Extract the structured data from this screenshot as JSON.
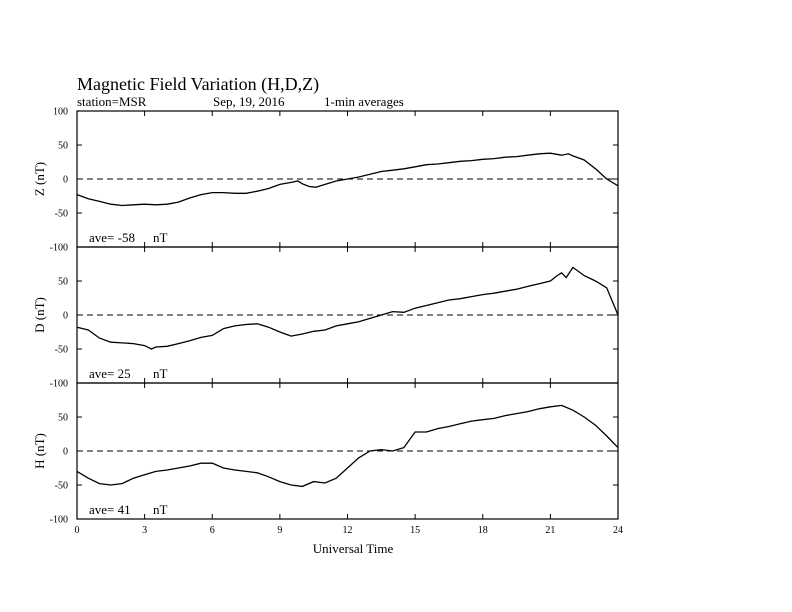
{
  "chart_data": {
    "type": "line",
    "title": "Magnetic Field Variation (H,D,Z)",
    "station": "station=MSR",
    "date": "Sep, 19, 2016",
    "averaging": "1-min averages",
    "xlabel": "Universal Time",
    "xlim": [
      0,
      24
    ],
    "xticks": [
      0,
      3,
      6,
      9,
      12,
      15,
      18,
      21,
      24
    ],
    "grid": false,
    "panels": [
      {
        "name": "Z",
        "ylabel": "Z (nT)",
        "ylim": [
          -100,
          100
        ],
        "yticks": [
          -100,
          -50,
          0,
          50,
          100
        ],
        "ave_label": "ave=",
        "ave_value": "-58",
        "ave_unit": "nT",
        "x": [
          0,
          0.5,
          1,
          1.5,
          2,
          2.5,
          3,
          3.5,
          4,
          4.5,
          5,
          5.5,
          6,
          6.5,
          7,
          7.5,
          8,
          8.5,
          9,
          9.5,
          9.8,
          10,
          10.3,
          10.6,
          11,
          11.5,
          12,
          12.5,
          13,
          13.5,
          14,
          14.5,
          15,
          15.5,
          16,
          16.5,
          17,
          17.5,
          18,
          18.5,
          19,
          19.5,
          20,
          20.5,
          21,
          21.5,
          21.8,
          22,
          22.5,
          23,
          23.5,
          24
        ],
        "y": [
          -23,
          -29,
          -33,
          -37,
          -39,
          -38,
          -37,
          -38,
          -37,
          -34,
          -28,
          -23,
          -20,
          -20,
          -21,
          -21,
          -18,
          -14,
          -8,
          -5,
          -3,
          -7,
          -11,
          -12,
          -8,
          -3,
          0,
          3,
          7,
          11,
          13,
          15,
          18,
          21,
          22,
          24,
          26,
          27,
          29,
          30,
          32,
          33,
          35,
          37,
          38,
          35,
          37,
          34,
          28,
          15,
          0,
          -10
        ]
      },
      {
        "name": "D",
        "ylabel": "D (nT)",
        "ylim": [
          -100,
          100
        ],
        "yticks": [
          -100,
          -50,
          0,
          50,
          100
        ],
        "ave_label": "ave=",
        "ave_value": "25",
        "ave_unit": "nT",
        "x": [
          0,
          0.5,
          1,
          1.5,
          2,
          2.5,
          3,
          3.3,
          3.5,
          4,
          4.5,
          5,
          5.5,
          6,
          6.5,
          7,
          7.5,
          8,
          8.5,
          9,
          9.5,
          10,
          10.5,
          11,
          11.5,
          12,
          12.5,
          13,
          13.5,
          14,
          14.5,
          15,
          15.5,
          16,
          16.5,
          17,
          17.5,
          18,
          18.5,
          19,
          19.5,
          20,
          20.5,
          21,
          21.3,
          21.5,
          21.7,
          22,
          22.5,
          23,
          23.5,
          24
        ],
        "y": [
          -18,
          -22,
          -34,
          -40,
          -41,
          -42,
          -45,
          -50,
          -47,
          -46,
          -42,
          -38,
          -33,
          -30,
          -20,
          -16,
          -14,
          -13,
          -18,
          -25,
          -31,
          -28,
          -24,
          -22,
          -16,
          -13,
          -10,
          -5,
          0,
          5,
          4,
          10,
          14,
          18,
          22,
          24,
          27,
          30,
          32,
          35,
          38,
          42,
          46,
          50,
          58,
          62,
          55,
          70,
          58,
          50,
          40,
          0
        ]
      },
      {
        "name": "H",
        "ylabel": "H (nT)",
        "ylim": [
          -100,
          100
        ],
        "yticks": [
          -100,
          -50,
          0,
          50,
          100
        ],
        "ave_label": "ave=",
        "ave_value": "41",
        "ave_unit": "nT",
        "x": [
          0,
          0.5,
          1,
          1.5,
          2,
          2.5,
          3,
          3.5,
          4,
          4.5,
          5,
          5.5,
          6,
          6.5,
          7,
          7.5,
          8,
          8.5,
          9,
          9.5,
          10,
          10.5,
          11,
          11.5,
          12,
          12.5,
          13,
          13.5,
          14,
          14.5,
          15,
          15.5,
          16,
          16.5,
          17,
          17.5,
          18,
          18.5,
          19,
          19.5,
          20,
          20.5,
          21,
          21.5,
          22,
          22.5,
          23,
          23.5,
          24
        ],
        "y": [
          -30,
          -40,
          -48,
          -50,
          -48,
          -40,
          -35,
          -30,
          -28,
          -25,
          -22,
          -18,
          -18,
          -25,
          -28,
          -30,
          -32,
          -38,
          -45,
          -50,
          -52,
          -45,
          -47,
          -40,
          -25,
          -10,
          0,
          2,
          0,
          5,
          28,
          28,
          33,
          36,
          40,
          44,
          46,
          48,
          52,
          55,
          58,
          62,
          65,
          67,
          60,
          50,
          38,
          22,
          5
        ]
      }
    ]
  }
}
